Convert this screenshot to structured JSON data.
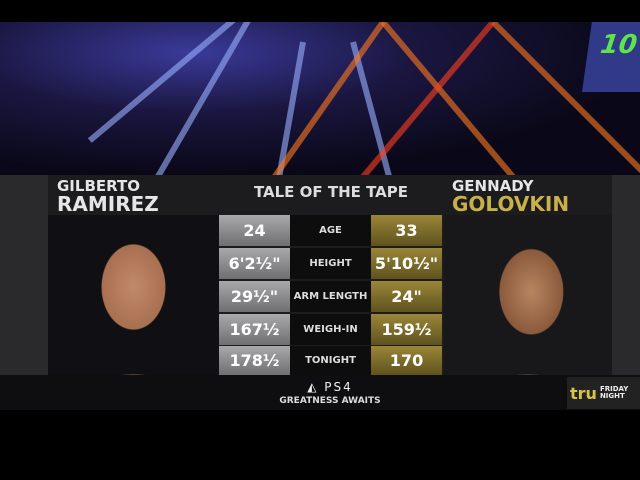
{
  "title": "TALE OF THE TAPE",
  "fighter_left": {
    "first": "GILBERTO",
    "last": "RAMIREZ",
    "color": "#e6e6e6"
  },
  "fighter_right": {
    "first": "GENNADY",
    "last": "GOLOVKIN",
    "color": "#c9b04a"
  },
  "rows": [
    {
      "label": "AGE",
      "left": "24",
      "right": "33"
    },
    {
      "label": "HEIGHT",
      "left": "6'2½\"",
      "right": "5'10½\""
    },
    {
      "label": "ARM LENGTH",
      "left": "29½\"",
      "right": "24\""
    },
    {
      "label": "WEIGH-IN",
      "left": "167½",
      "right": "159½"
    },
    {
      "label": "TONIGHT",
      "left": "178½",
      "right": "170"
    }
  ],
  "sponsor": {
    "logo": "PS4",
    "tagline": "GREATNESS AWAITS"
  },
  "network": {
    "logo": "tru",
    "sub1": "FRIDAY",
    "sub2": "NIGHT"
  },
  "arena_screen": "10"
}
